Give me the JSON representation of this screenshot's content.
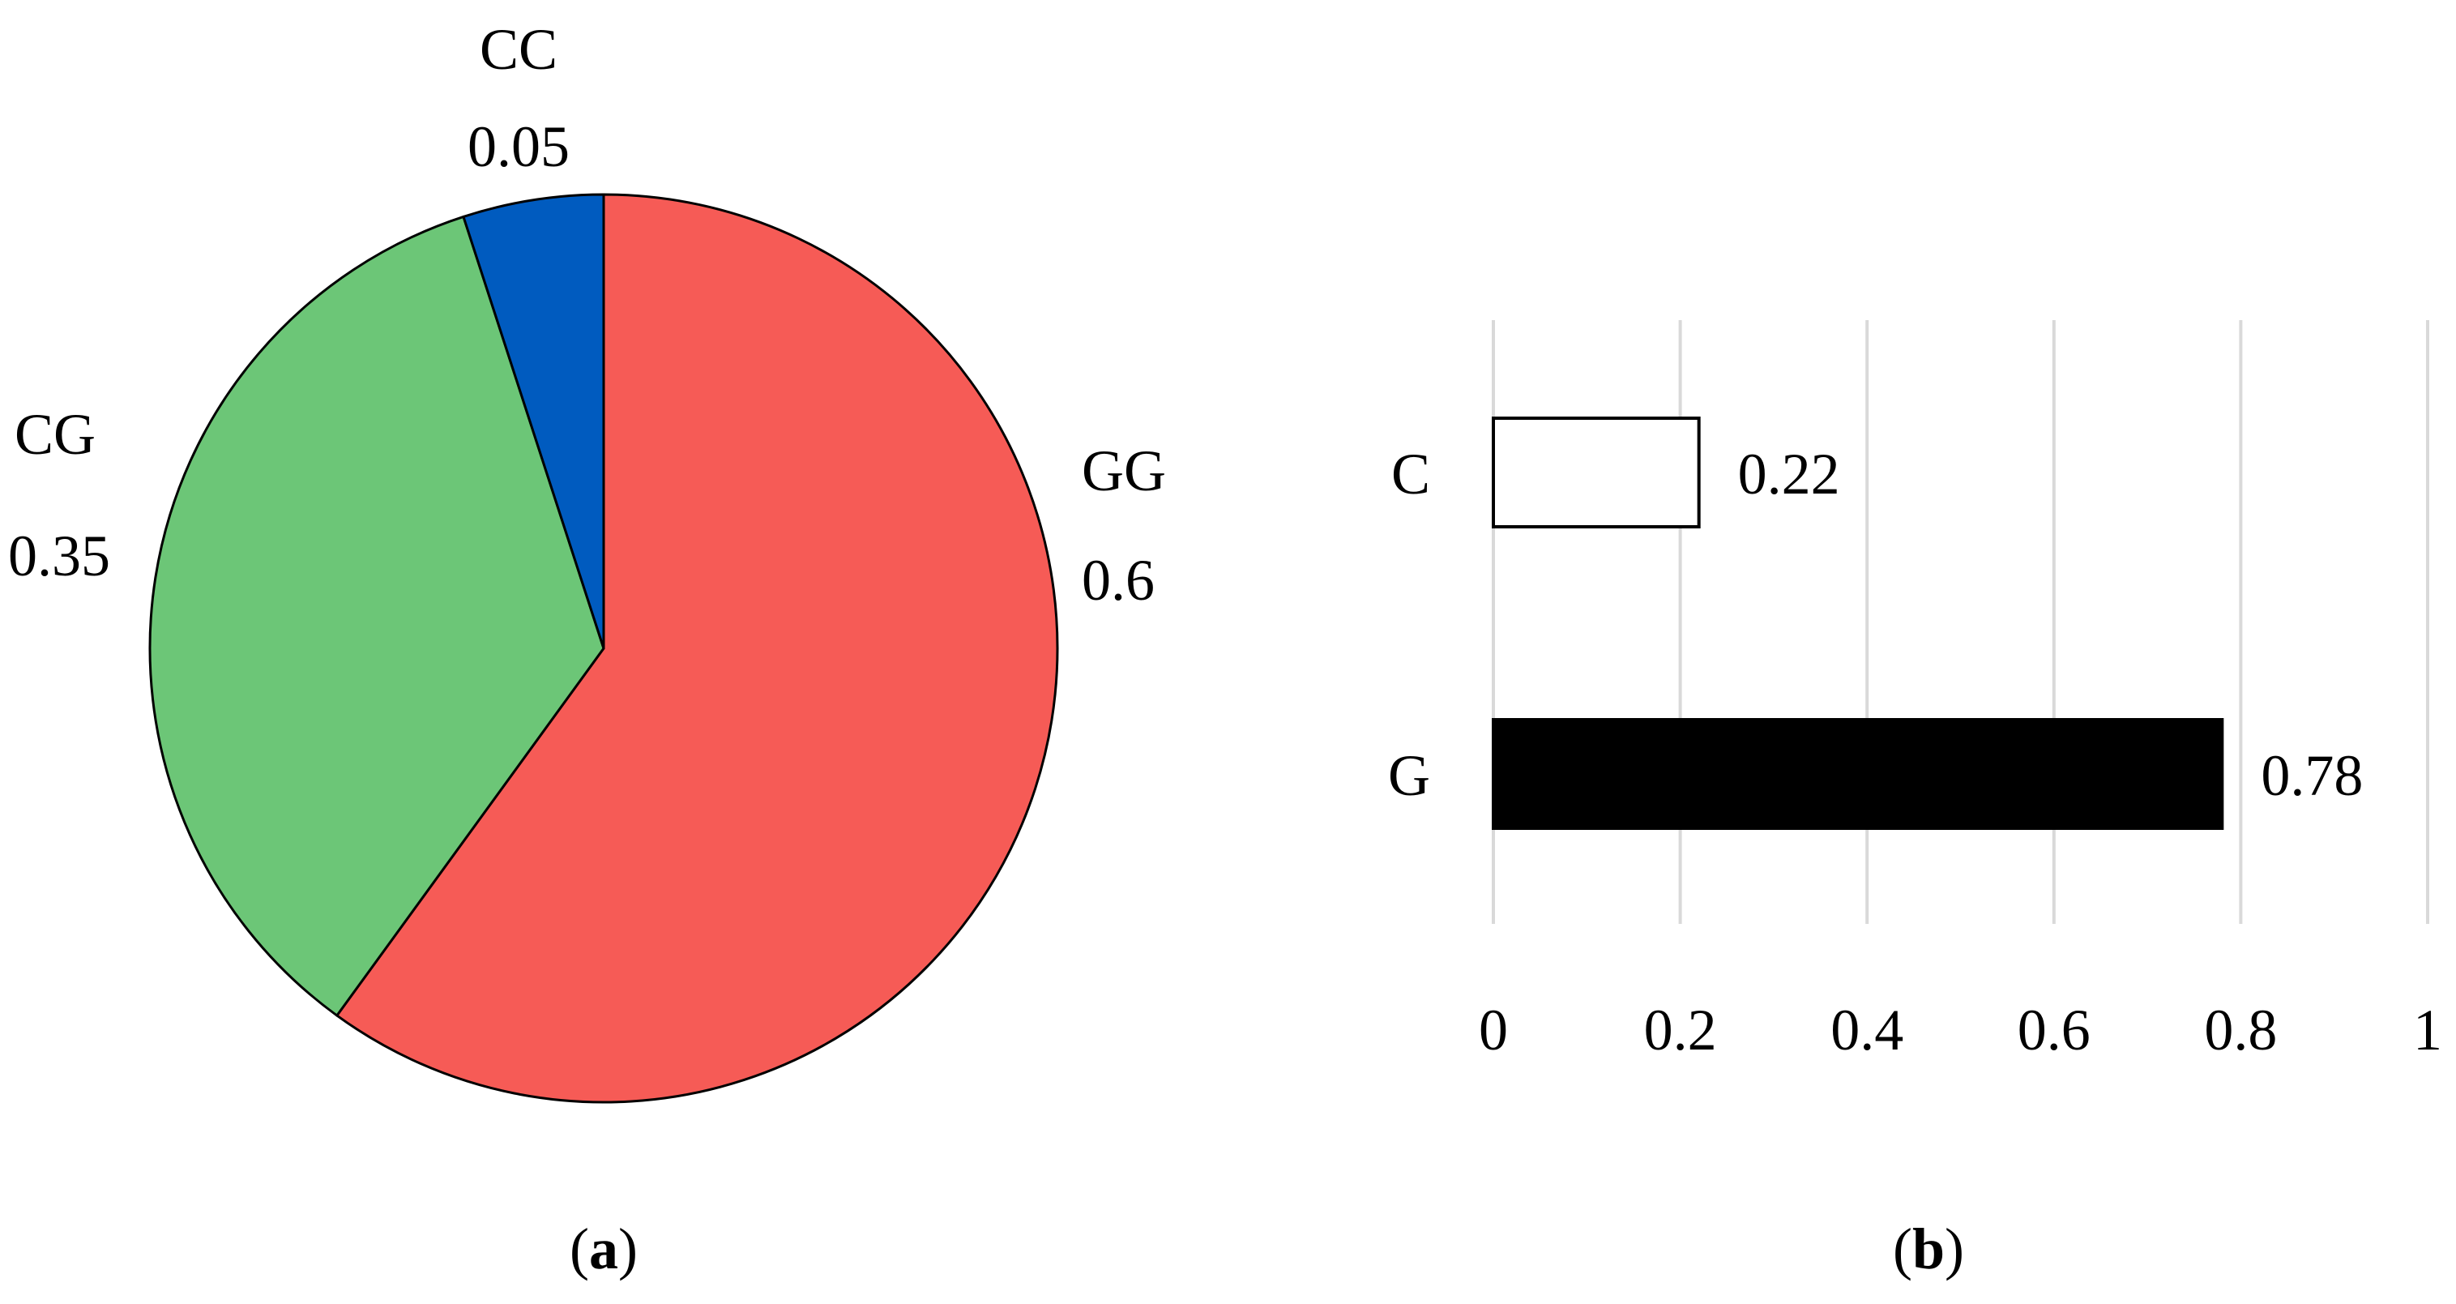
{
  "chart_data": [
    {
      "type": "pie",
      "panel_label": "a",
      "slices": [
        {
          "label": "GG",
          "value": 0.6,
          "value_text": "0.6",
          "color": "#F65B56"
        },
        {
          "label": "CG",
          "value": 0.35,
          "value_text": "0.35",
          "color": "#6CC677"
        },
        {
          "label": "CC",
          "value": 0.05,
          "value_text": "0.05",
          "color": "#005BBF"
        }
      ],
      "start": "top",
      "direction": "clockwise",
      "edge_color": "#000000"
    },
    {
      "type": "bar",
      "orientation": "horizontal",
      "panel_label": "b",
      "categories": [
        "C",
        "G"
      ],
      "values": [
        0.22,
        0.78
      ],
      "value_texts": [
        "0.22",
        "0.78"
      ],
      "bar_colors": [
        "#FFFFFF",
        "#000000"
      ],
      "bar_edge_color": "#000000",
      "xlim": [
        0,
        1
      ],
      "xticks": [
        0,
        0.2,
        0.4,
        0.6,
        0.8,
        1
      ],
      "xtick_labels": [
        "0",
        "0.2",
        "0.4",
        "0.6",
        "0.8",
        "1"
      ],
      "grid": true,
      "grid_color": "#D9D9D9"
    }
  ]
}
